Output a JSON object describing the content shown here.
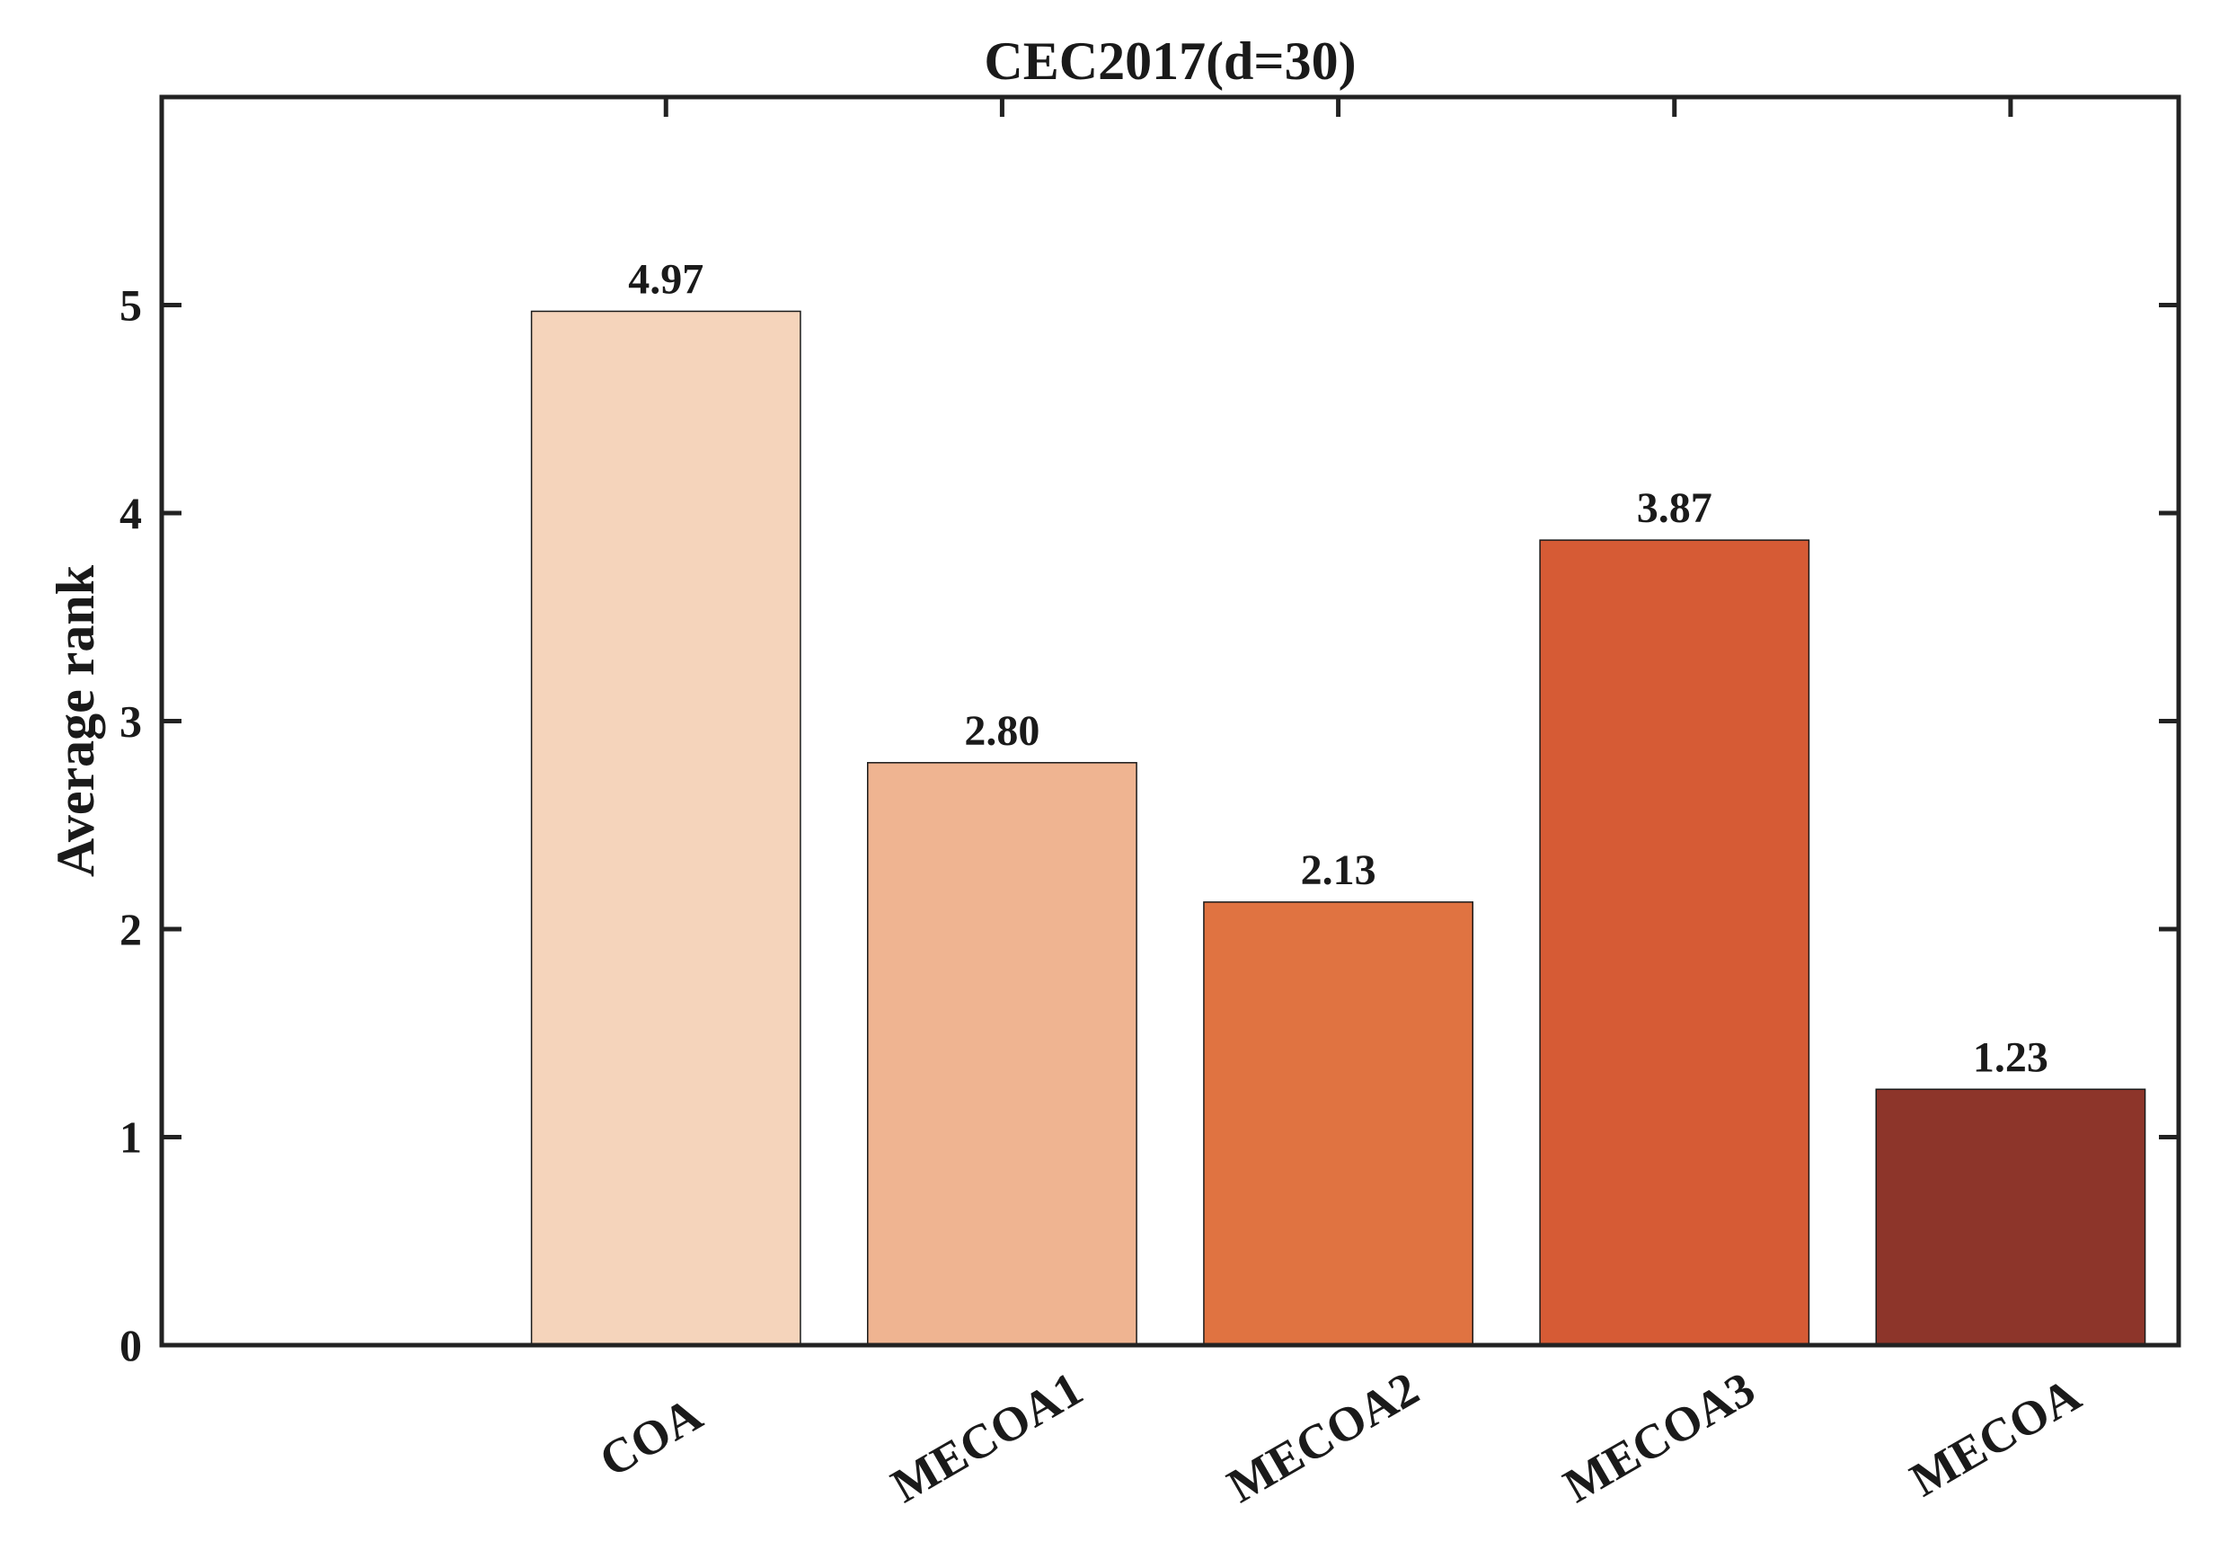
{
  "chart_data": {
    "type": "bar",
    "title": "CEC2017(d=30)",
    "xlabel": "",
    "ylabel": "Average rank",
    "categories": [
      "COA",
      "MECOA1",
      "MECOA2",
      "MECOA3",
      "MECOA"
    ],
    "values": [
      4.97,
      2.8,
      2.13,
      3.87,
      1.23
    ],
    "value_labels": [
      "4.97",
      "2.80",
      "2.13",
      "3.87",
      "1.23"
    ],
    "colors": [
      "#F5D4BB",
      "#EFB491",
      "#E07341",
      "#D65B35",
      "#8D352A"
    ],
    "ylim": [
      0,
      6
    ],
    "yticks": [
      0,
      1,
      2,
      3,
      4,
      5
    ],
    "ytick_labels": [
      "0",
      "1",
      "2",
      "3",
      "4",
      "5"
    ],
    "xlim": [
      -0.5,
      5.5
    ],
    "grid": false,
    "legend": "none",
    "box": true
  }
}
